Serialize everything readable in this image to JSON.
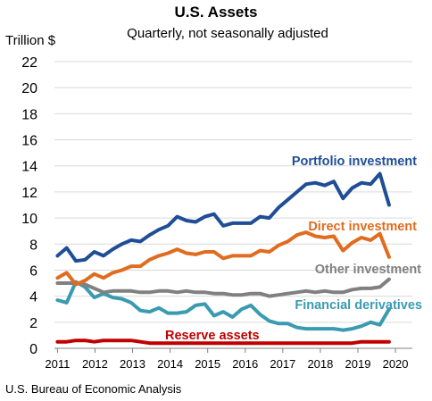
{
  "chart_data": {
    "type": "line",
    "title": "U.S. Assets",
    "subtitle": "Quarterly, not seasonally adjusted",
    "ylabel": "Trillion $",
    "source": "U.S. Bureau of Economic Analysis",
    "ylim": [
      0,
      22
    ],
    "yticks": [
      0,
      2,
      4,
      6,
      8,
      10,
      12,
      14,
      16,
      18,
      20,
      22
    ],
    "xlim": [
      2011,
      2020.5
    ],
    "xticks": [
      "2011",
      "2012",
      "2013",
      "2014",
      "2015",
      "2016",
      "2017",
      "2018",
      "2019",
      "2020"
    ],
    "grid": true,
    "legend": "labels next to lines",
    "x": [
      "2010 Q4",
      "2011 Q1",
      "2011 Q2",
      "2011 Q3",
      "2011 Q4",
      "2012 Q1",
      "2012 Q2",
      "2012 Q3",
      "2012 Q4",
      "2013 Q1",
      "2013 Q2",
      "2013 Q3",
      "2013 Q4",
      "2014 Q1",
      "2014 Q2",
      "2014 Q3",
      "2014 Q4",
      "2015 Q1",
      "2015 Q2",
      "2015 Q3",
      "2015 Q4",
      "2016 Q1",
      "2016 Q2",
      "2016 Q3",
      "2016 Q4",
      "2017 Q1",
      "2017 Q2",
      "2017 Q3",
      "2017 Q4",
      "2018 Q1",
      "2018 Q2",
      "2018 Q3",
      "2018 Q4",
      "2019 Q1",
      "2019 Q2",
      "2019 Q3",
      "2019 Q4"
    ],
    "series": [
      {
        "name": "Portfolio investment",
        "color": "#1f4e96",
        "values": [
          7.1,
          7.7,
          6.7,
          6.8,
          7.4,
          7.1,
          7.6,
          8.0,
          8.3,
          8.2,
          8.7,
          9.1,
          9.4,
          10.1,
          9.8,
          9.7,
          10.1,
          10.3,
          9.4,
          9.6,
          9.6,
          9.6,
          10.1,
          10.0,
          10.8,
          11.4,
          12.0,
          12.6,
          12.7,
          12.5,
          12.8,
          11.5,
          12.3,
          12.7,
          12.6,
          13.4,
          11.0
        ]
      },
      {
        "name": "Direct investment",
        "color": "#e06c1f",
        "values": [
          5.4,
          5.8,
          4.9,
          5.2,
          5.7,
          5.4,
          5.8,
          6.0,
          6.3,
          6.3,
          6.8,
          7.1,
          7.3,
          7.6,
          7.3,
          7.2,
          7.4,
          7.4,
          6.9,
          7.1,
          7.1,
          7.1,
          7.5,
          7.4,
          7.9,
          8.2,
          8.7,
          8.9,
          8.6,
          8.5,
          8.6,
          7.5,
          8.1,
          8.5,
          8.3,
          8.8,
          7.0
        ]
      },
      {
        "name": "Other investment",
        "color": "#808080",
        "values": [
          5.0,
          5.0,
          5.0,
          4.9,
          4.6,
          4.3,
          4.4,
          4.4,
          4.4,
          4.3,
          4.3,
          4.4,
          4.4,
          4.3,
          4.4,
          4.3,
          4.3,
          4.2,
          4.2,
          4.1,
          4.1,
          4.2,
          4.2,
          4.0,
          4.1,
          4.2,
          4.3,
          4.4,
          4.3,
          4.4,
          4.3,
          4.3,
          4.5,
          4.6,
          4.6,
          4.7,
          5.3
        ]
      },
      {
        "name": "Financial derivatives",
        "color": "#3a9bb0",
        "values": [
          3.7,
          3.5,
          5.1,
          4.7,
          3.9,
          4.2,
          3.9,
          3.8,
          3.5,
          2.9,
          2.8,
          3.1,
          2.7,
          2.7,
          2.8,
          3.3,
          3.4,
          2.5,
          2.8,
          2.4,
          3.0,
          3.3,
          2.6,
          2.1,
          1.9,
          1.9,
          1.6,
          1.5,
          1.5,
          1.5,
          1.5,
          1.4,
          1.5,
          1.7,
          2.0,
          1.8,
          3.0
        ]
      },
      {
        "name": "Reserve assets",
        "color": "#c00000",
        "values": [
          0.5,
          0.5,
          0.6,
          0.6,
          0.5,
          0.6,
          0.6,
          0.6,
          0.6,
          0.5,
          0.4,
          0.4,
          0.4,
          0.4,
          0.4,
          0.4,
          0.4,
          0.4,
          0.4,
          0.4,
          0.4,
          0.4,
          0.4,
          0.4,
          0.4,
          0.4,
          0.4,
          0.4,
          0.4,
          0.4,
          0.4,
          0.4,
          0.4,
          0.5,
          0.5,
          0.5,
          0.5
        ]
      }
    ]
  }
}
